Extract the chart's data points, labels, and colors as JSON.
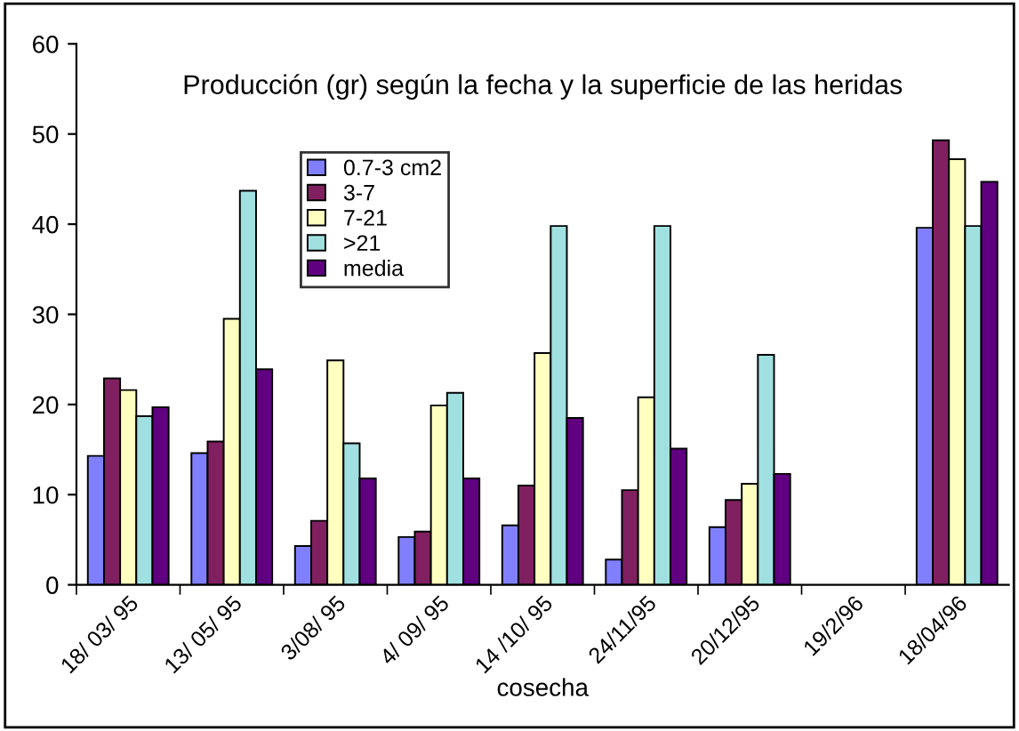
{
  "chart_data": {
    "type": "bar",
    "title": "Producción (gr) según la fecha y la superficie de las heridas",
    "xlabel": "cosecha",
    "categories": [
      "18/ 03/ 95",
      "13/ 05/ 95",
      "3/08/ 95",
      "4/ 09/ 95",
      "14 /10/ 95",
      "24/11/95",
      "20/12/95",
      "19/2/96",
      "18/04/96"
    ],
    "series": [
      {
        "name": "0.7-3 cm2",
        "color": "#8080ff",
        "values": [
          14.3,
          14.6,
          4.3,
          5.3,
          6.6,
          2.8,
          6.4,
          null,
          39.6
        ]
      },
      {
        "name": "3-7",
        "color": "#802060",
        "values": [
          22.9,
          15.9,
          7.1,
          5.9,
          11.0,
          10.5,
          9.4,
          null,
          49.3
        ]
      },
      {
        "name": "7-21",
        "color": "#ffffc0",
        "values": [
          21.6,
          29.5,
          24.9,
          19.9,
          25.7,
          20.8,
          11.2,
          null,
          47.2
        ]
      },
      {
        "name": ">21",
        "color": "#a0e0e0",
        "values": [
          18.7,
          43.7,
          15.7,
          21.3,
          39.8,
          39.8,
          25.5,
          null,
          39.8
        ]
      },
      {
        "name": "media",
        "color": "#600080",
        "values": [
          19.7,
          23.9,
          11.8,
          11.8,
          18.5,
          15.1,
          12.3,
          null,
          44.7
        ]
      }
    ],
    "ylim": [
      0,
      60
    ],
    "yticks": [
      0,
      10,
      20,
      30,
      40,
      50,
      60
    ],
    "grid": false,
    "legend": "top"
  }
}
